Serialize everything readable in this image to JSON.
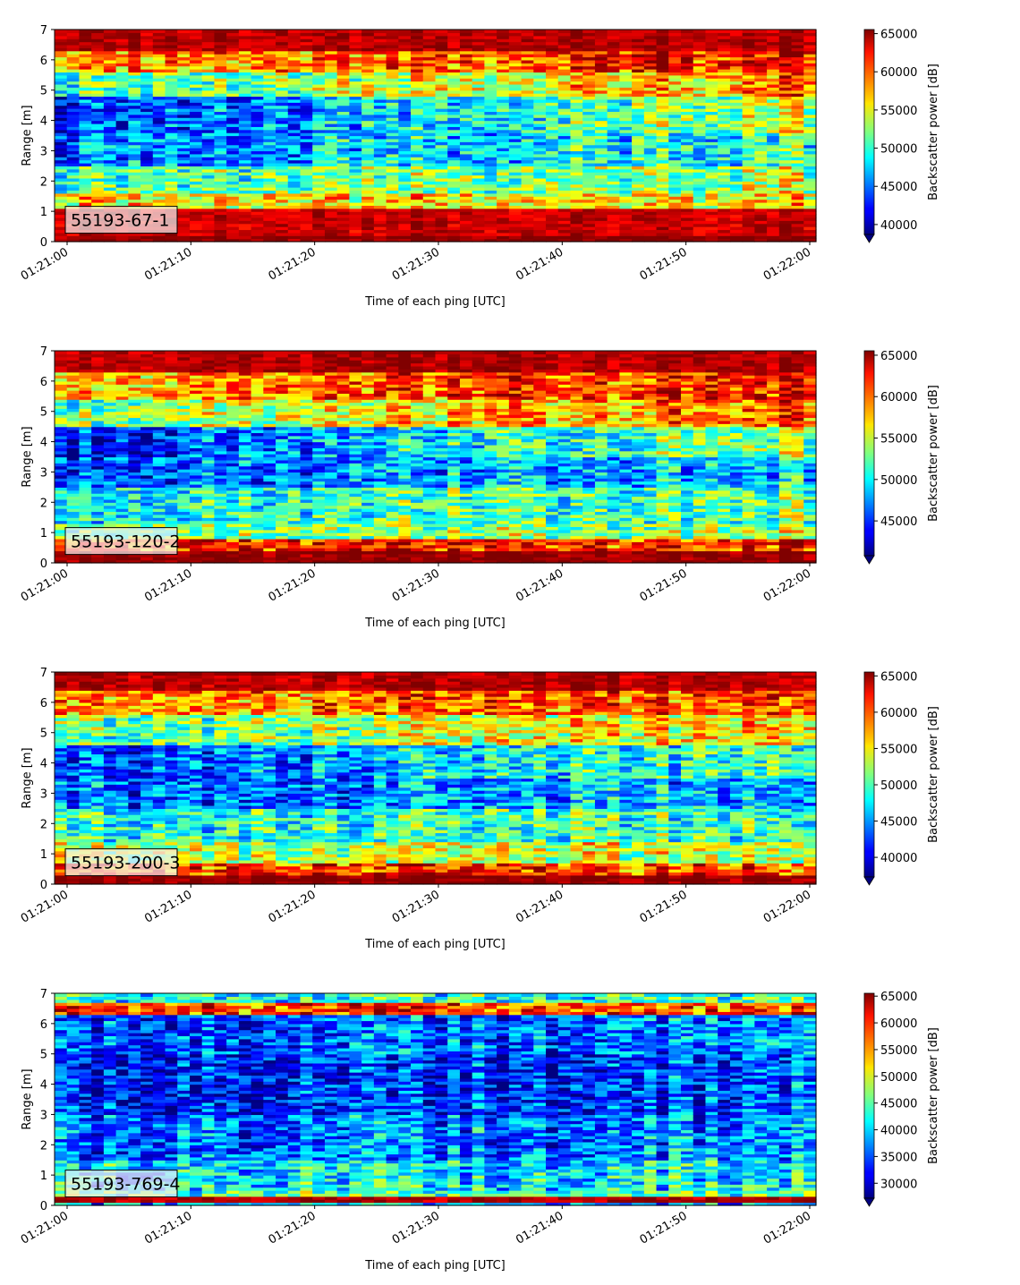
{
  "chart_data": [
    {
      "type": "heatmap",
      "label": "55193-67-1",
      "xlabel": "Time of each ping [UTC]",
      "ylabel": "Range [m]",
      "x_ticks": [
        "01:21:00",
        "01:21:10",
        "01:21:20",
        "01:21:30",
        "01:21:40",
        "01:21:50",
        "01:22:00"
      ],
      "y_ticks": [
        "0",
        "1",
        "2",
        "3",
        "4",
        "5",
        "6",
        "7"
      ],
      "ylim": [
        0,
        7
      ],
      "colorbar": {
        "label": "Backscatter power [dB]",
        "min": 38700,
        "max": 65535,
        "ticks": [
          40000,
          45000,
          50000,
          55000,
          60000,
          65000
        ]
      },
      "bands": [
        {
          "from": 0.0,
          "to": 0.2,
          "level": 0.99
        },
        {
          "from": 0.2,
          "to": 1.1,
          "level": 0.93
        },
        {
          "from": 1.1,
          "to": 1.6,
          "level": 0.65,
          "trend": 0.0
        },
        {
          "from": 1.6,
          "to": 2.5,
          "level": 0.45,
          "trend": 0.1
        },
        {
          "from": 2.5,
          "to": 3.6,
          "level": 0.25,
          "trend": 0.18
        },
        {
          "from": 3.6,
          "to": 4.8,
          "level": 0.16,
          "trend": 0.42
        },
        {
          "from": 4.8,
          "to": 5.6,
          "level": 0.42,
          "trend": 0.35
        },
        {
          "from": 5.6,
          "to": 6.3,
          "level": 0.72,
          "trend": 0.15
        },
        {
          "from": 6.3,
          "to": 7.0,
          "level": 0.95,
          "trend": 0.0
        }
      ]
    },
    {
      "type": "heatmap",
      "label": "55193-120-2",
      "xlabel": "Time of each ping [UTC]",
      "ylabel": "Range [m]",
      "x_ticks": [
        "01:21:00",
        "01:21:10",
        "01:21:20",
        "01:21:30",
        "01:21:40",
        "01:21:50",
        "01:22:00"
      ],
      "y_ticks": [
        "0",
        "1",
        "2",
        "3",
        "4",
        "5",
        "6",
        "7"
      ],
      "ylim": [
        0,
        7
      ],
      "colorbar": {
        "label": "Backscatter power [dB]",
        "min": 40800,
        "max": 65535,
        "ticks": [
          45000,
          50000,
          55000,
          60000,
          65000
        ]
      },
      "bands": [
        {
          "from": 0.0,
          "to": 0.4,
          "level": 0.99
        },
        {
          "from": 0.4,
          "to": 0.8,
          "level": 0.85
        },
        {
          "from": 0.8,
          "to": 1.3,
          "level": 0.5,
          "trend": 0.05
        },
        {
          "from": 1.3,
          "to": 2.5,
          "level": 0.4,
          "trend": 0.08
        },
        {
          "from": 2.5,
          "to": 3.5,
          "level": 0.22,
          "trend": 0.12
        },
        {
          "from": 3.5,
          "to": 4.5,
          "level": 0.15,
          "trend": 0.4
        },
        {
          "from": 4.5,
          "to": 5.4,
          "level": 0.5,
          "trend": 0.3
        },
        {
          "from": 5.4,
          "to": 6.3,
          "level": 0.72,
          "trend": 0.15
        },
        {
          "from": 6.3,
          "to": 7.0,
          "level": 0.96,
          "trend": 0.0
        }
      ]
    },
    {
      "type": "heatmap",
      "label": "55193-200-3",
      "xlabel": "Time of each ping [UTC]",
      "ylabel": "Range [m]",
      "x_ticks": [
        "01:21:00",
        "01:21:10",
        "01:21:20",
        "01:21:30",
        "01:21:40",
        "01:21:50",
        "01:22:00"
      ],
      "y_ticks": [
        "0",
        "1",
        "2",
        "3",
        "4",
        "5",
        "6",
        "7"
      ],
      "ylim": [
        0,
        7
      ],
      "colorbar": {
        "label": "Backscatter power [dB]",
        "min": 37300,
        "max": 65535,
        "ticks": [
          40000,
          45000,
          50000,
          55000,
          60000,
          65000
        ]
      },
      "bands": [
        {
          "from": 0.0,
          "to": 0.3,
          "level": 0.99
        },
        {
          "from": 0.3,
          "to": 0.7,
          "level": 0.82
        },
        {
          "from": 0.7,
          "to": 1.4,
          "level": 0.55,
          "trend": 0.05
        },
        {
          "from": 1.4,
          "to": 2.5,
          "level": 0.4,
          "trend": 0.05
        },
        {
          "from": 2.5,
          "to": 3.5,
          "level": 0.22,
          "trend": 0.1
        },
        {
          "from": 3.5,
          "to": 4.6,
          "level": 0.18,
          "trend": 0.3
        },
        {
          "from": 4.6,
          "to": 5.6,
          "level": 0.45,
          "trend": 0.25
        },
        {
          "from": 5.6,
          "to": 6.4,
          "level": 0.72,
          "trend": 0.12
        },
        {
          "from": 6.4,
          "to": 7.0,
          "level": 0.95,
          "trend": 0.0
        }
      ]
    },
    {
      "type": "heatmap",
      "label": "55193-769-4",
      "xlabel": "Time of each ping [UTC]",
      "ylabel": "Range [m]",
      "x_ticks": [
        "01:21:00",
        "01:21:10",
        "01:21:20",
        "01:21:30",
        "01:21:40",
        "01:21:50",
        "01:22:00"
      ],
      "y_ticks": [
        "0",
        "1",
        "2",
        "3",
        "4",
        "5",
        "6",
        "7"
      ],
      "ylim": [
        0,
        7
      ],
      "colorbar": {
        "label": "Backscatter power [dB]",
        "min": 27200,
        "max": 65535,
        "ticks": [
          30000,
          35000,
          40000,
          45000,
          50000,
          55000,
          60000,
          65000
        ]
      },
      "bands": [
        {
          "from": 0.0,
          "to": 0.15,
          "level": 0.3
        },
        {
          "from": 0.15,
          "to": 0.3,
          "level": 0.96
        },
        {
          "from": 0.3,
          "to": 0.5,
          "level": 0.45
        },
        {
          "from": 0.5,
          "to": 1.5,
          "level": 0.35,
          "trend": 0.02
        },
        {
          "from": 1.5,
          "to": 3.0,
          "level": 0.22,
          "trend": 0.05
        },
        {
          "from": 3.0,
          "to": 5.0,
          "level": 0.13,
          "trend": 0.08
        },
        {
          "from": 5.0,
          "to": 6.3,
          "level": 0.18,
          "trend": 0.1
        },
        {
          "from": 6.3,
          "to": 6.75,
          "level": 0.8,
          "trend": 0.0
        },
        {
          "from": 6.75,
          "to": 7.0,
          "level": 0.38,
          "trend": 0.05
        }
      ]
    }
  ]
}
